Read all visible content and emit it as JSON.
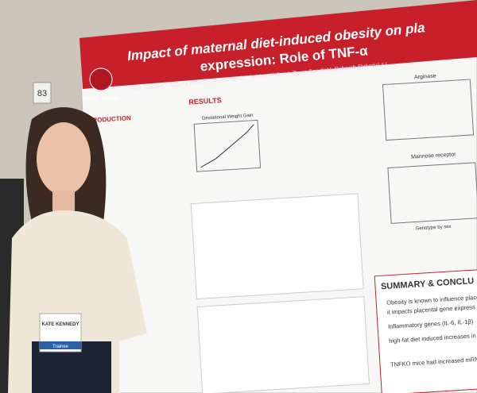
{
  "wall_sign": "83",
  "poster": {
    "title_line1": "Impact of maternal diet-induced obesity on pla",
    "title_line2": "expression: Role of TNF-α",
    "authors": "Kate Kennedy¹, Tatiane Ribeiro², Wajiha Gohir¹, Jessica Wallace¹, Dawn Bowdish¹, Deborah Sloboda¹,⁴,⁵",
    "logo": "NSERC CRSNG",
    "sections": {
      "introduction": "INTRODUCTION",
      "results": "RESULTS",
      "summary": "SUMMARY & CONCLU"
    },
    "figures": {
      "weight_gain": "Gestational Weight Gain",
      "arginase": "Arginase",
      "mannose": "Mannose receptor",
      "genotype": "Genotype by sex"
    },
    "summary_items": [
      "Obesity is known to influence placental",
      "it impacts placental gene express",
      "Inflammatory genes (IL-6, IL-1β)",
      "high-fat diet induced increases in",
      "TNFKO mice had increased mRNA"
    ]
  },
  "badge": {
    "name": "KATE KENNEDY",
    "role": "Trainee"
  }
}
